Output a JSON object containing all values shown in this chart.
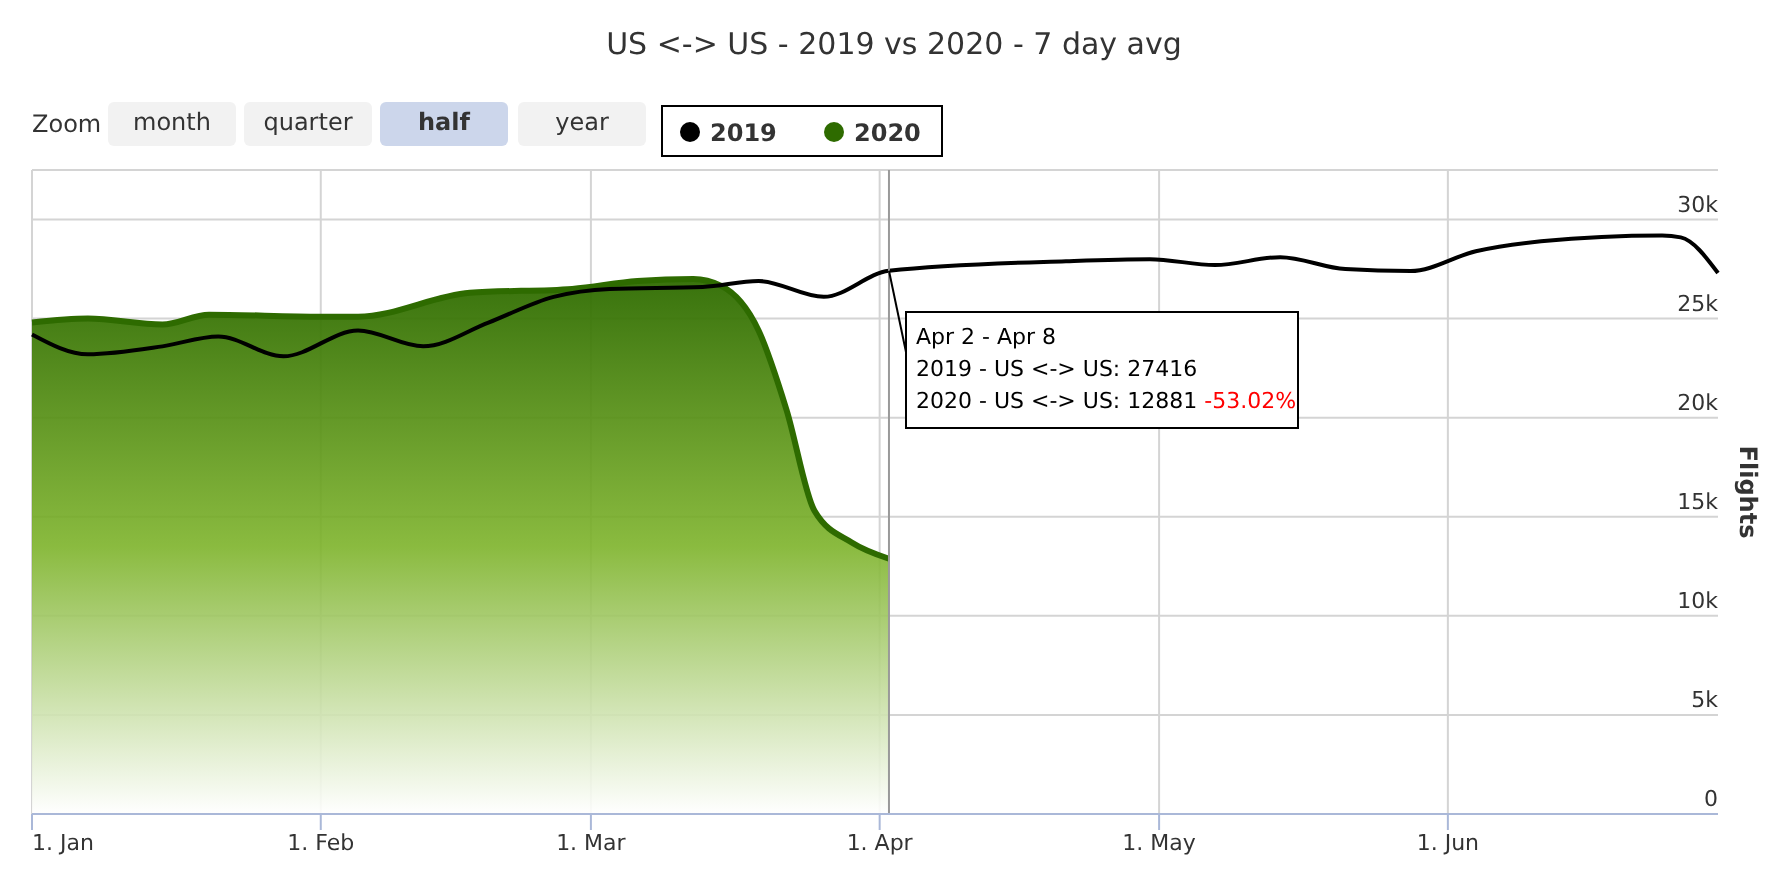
{
  "chart_data": {
    "type": "line",
    "title": "US <-> US - 2019 vs 2020 - 7 day avg",
    "ylabel": "Flights",
    "xlim": [
      "2020-01-01",
      "2020-06-30"
    ],
    "xticks": [
      {
        "value": "2020-01-01",
        "label": "1. Jan"
      },
      {
        "value": "2020-02-01",
        "label": "1. Feb"
      },
      {
        "value": "2020-03-01",
        "label": "1. Mar"
      },
      {
        "value": "2020-04-01",
        "label": "1. Apr"
      },
      {
        "value": "2020-05-01",
        "label": "1. May"
      },
      {
        "value": "2020-06-01",
        "label": "1. Jun"
      }
    ],
    "ylim": [
      0,
      32500
    ],
    "yticks": [
      0,
      {
        "value": 5000,
        "label": "5k"
      },
      {
        "value": 10000,
        "label": "10k"
      },
      {
        "value": 15000,
        "label": "15k"
      },
      {
        "value": 20000,
        "label": "20k"
      },
      {
        "value": 25000,
        "label": "25k"
      },
      {
        "value": 30000,
        "label": "30k"
      }
    ],
    "grid": true,
    "legend": "top",
    "marker": "none",
    "line_style": "solid",
    "series": [
      {
        "name": "2019",
        "color": "#000000",
        "x": [
          "2020-01-01",
          "2020-01-07",
          "2020-01-15",
          "2020-01-21",
          "2020-01-28",
          "2020-02-05",
          "2020-02-12",
          "2020-02-19",
          "2020-02-26",
          "2020-03-03",
          "2020-03-13",
          "2020-03-19",
          "2020-03-26",
          "2020-04-02",
          "2020-04-21",
          "2020-04-30",
          "2020-05-07",
          "2020-05-14",
          "2020-05-21",
          "2020-05-28",
          "2020-06-04",
          "2020-06-11",
          "2020-06-24",
          "2020-06-26",
          "2020-06-30"
        ],
        "values": [
          24200,
          23200,
          23600,
          24100,
          23100,
          24400,
          23600,
          24800,
          26100,
          26500,
          26600,
          26900,
          26100,
          27416,
          27900,
          28000,
          27700,
          28100,
          27500,
          27400,
          28400,
          28900,
          29200,
          29100,
          27300
        ]
      },
      {
        "name": "2020",
        "type": "area",
        "color": "#2e6b00",
        "x": [
          "2020-01-01",
          "2020-01-07",
          "2020-01-15",
          "2020-01-20",
          "2020-02-01",
          "2020-02-05",
          "2020-02-17",
          "2020-02-28",
          "2020-03-06",
          "2020-03-12",
          "2020-03-15",
          "2020-03-19",
          "2020-03-22",
          "2020-03-25",
          "2020-03-29",
          "2020-04-02"
        ],
        "values": [
          24800,
          25000,
          24700,
          25200,
          25100,
          25100,
          26300,
          26500,
          26900,
          27000,
          26650,
          24400,
          20400,
          15300,
          13700,
          12881
        ]
      }
    ],
    "ref_lines": [
      {
        "axis": "x",
        "value": "2020-04-02",
        "color": "#999999"
      }
    ],
    "annotations": [
      "Zoom",
      "month",
      "quarter",
      "half",
      "year",
      {
        "text": "Apr 2 - Apr 8",
        "x": "2020-04-02",
        "y": 27416
      },
      "2019 - US <-> US: 27416",
      "2020 - US <-> US: 12881",
      "-53.02%"
    ]
  }
}
